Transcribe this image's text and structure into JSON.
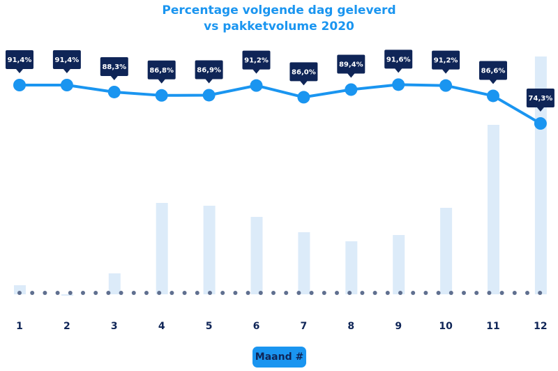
{
  "chart_data": {
    "type": "bar+line",
    "title": "Percentage volgende dag geleverd",
    "subtitle": "vs pakketvolume 2020",
    "xlabel": "Maand #",
    "categories": [
      "1",
      "2",
      "3",
      "4",
      "5",
      "6",
      "7",
      "8",
      "9",
      "10",
      "11",
      "12"
    ],
    "series": [
      {
        "type": "line",
        "values": [
          91.4,
          91.4,
          88.3,
          86.8,
          86.9,
          91.2,
          86.0,
          89.4,
          91.6,
          91.2,
          86.6,
          74.3
        ],
        "labels": [
          "91,4%",
          "91,4%",
          "88,3%",
          "86,8%",
          "86,9%",
          "91,2%",
          "86,0%",
          "89,4%",
          "91,6%",
          "91,2%",
          "86,6%",
          "74,3%"
        ]
      },
      {
        "type": "bar",
        "values": [
          13,
          -2,
          30,
          131,
          127,
          111,
          89,
          76,
          85,
          124,
          243,
          341
        ]
      }
    ],
    "colors": {
      "line": "#1a95f0",
      "bar": "#dcebf9",
      "label_bg": "#0f2557",
      "dots": "#5f6f8f",
      "axis_text": "#0f2557"
    }
  }
}
